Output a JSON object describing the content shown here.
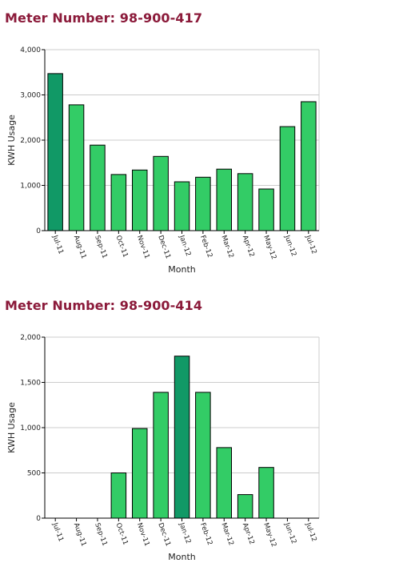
{
  "meters": [
    {
      "title": "Meter Number: 98-900-417"
    },
    {
      "title": "Meter Number: 98-900-414"
    }
  ],
  "colors": {
    "title": "#8b1a3a",
    "bar": "#33cc66",
    "bar_highlight": "#119966",
    "grid": "#cccccc"
  },
  "chart_data": [
    {
      "type": "bar",
      "xlabel": "Month",
      "ylabel": "KWH Usage",
      "ylim": [
        0,
        4000
      ],
      "yticks": [
        0,
        1000,
        2000,
        3000,
        4000
      ],
      "ytick_labels": [
        "0",
        "1,000",
        "2,000",
        "3,000",
        "4,000"
      ],
      "categories": [
        "Jul-11",
        "Aug-11",
        "Sep-11",
        "Oct-11",
        "Nov-11",
        "Dec-11",
        "Jan-12",
        "Feb-12",
        "Mar-12",
        "Apr-12",
        "May-12",
        "Jun-12",
        "Jul-12"
      ],
      "values": [
        3470,
        2780,
        1890,
        1240,
        1340,
        1640,
        1080,
        1180,
        1360,
        1260,
        920,
        2300,
        2850
      ],
      "highlight_index": 0,
      "grid": true
    },
    {
      "type": "bar",
      "xlabel": "Month",
      "ylabel": "KWH Usage",
      "ylim": [
        0,
        2000
      ],
      "yticks": [
        0,
        500,
        1000,
        1500,
        2000
      ],
      "ytick_labels": [
        "0",
        "500",
        "1,000",
        "1,500",
        "2,000"
      ],
      "categories": [
        "Jul-11",
        "Aug-11",
        "Sep-11",
        "Oct-11",
        "Nov-11",
        "Dec-11",
        "Jan-12",
        "Feb-12",
        "Mar-12",
        "Apr-12",
        "May-12",
        "Jun-12",
        "Jul-12"
      ],
      "values": [
        0,
        0,
        0,
        500,
        990,
        1390,
        1790,
        1390,
        780,
        260,
        560,
        0,
        0
      ],
      "highlight_index": 6,
      "grid": true
    }
  ]
}
